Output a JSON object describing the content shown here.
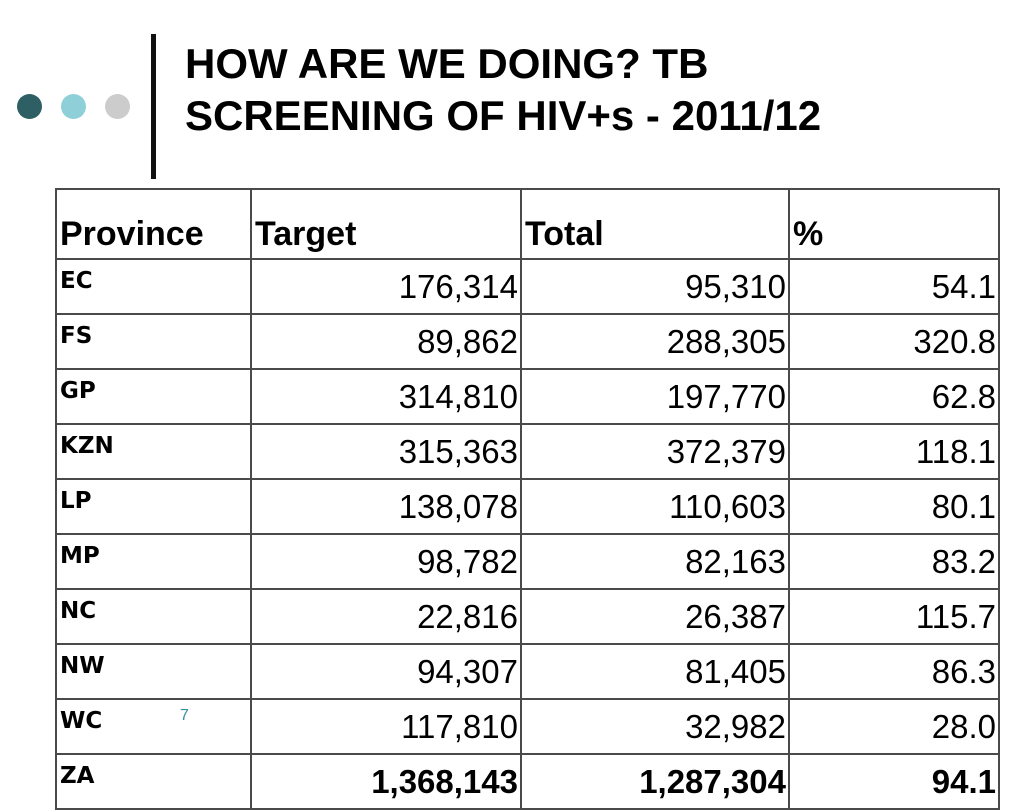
{
  "slide": {
    "title_line1": "HOW ARE WE DOING? TB",
    "title_line2": "SCREENING OF HIV+s - 2011/12",
    "page_number": "7",
    "colors": {
      "dot_dark": "#2e5f64",
      "dot_light": "#8fcfd8",
      "dot_gray": "#cccccc",
      "page_number": "#3a8fa0"
    }
  },
  "table": {
    "headers": [
      "Province",
      "Target",
      "Total",
      "%"
    ],
    "rows": [
      [
        "EC",
        "176,314",
        "95,310",
        "54.1"
      ],
      [
        "FS",
        "89,862",
        "288,305",
        "320.8"
      ],
      [
        "GP",
        "314,810",
        "197,770",
        "62.8"
      ],
      [
        "KZN",
        "315,363",
        "372,379",
        "118.1"
      ],
      [
        "LP",
        "138,078",
        "110,603",
        "80.1"
      ],
      [
        "MP",
        "98,782",
        "82,163",
        "83.2"
      ],
      [
        "NC",
        "22,816",
        "26,387",
        "115.7"
      ],
      [
        "NW",
        "94,307",
        "81,405",
        "86.3"
      ],
      [
        "WC",
        "117,810",
        "32,982",
        "28.0"
      ],
      [
        "ZA",
        "1,368,143",
        "1,287,304",
        "94.1"
      ]
    ]
  }
}
